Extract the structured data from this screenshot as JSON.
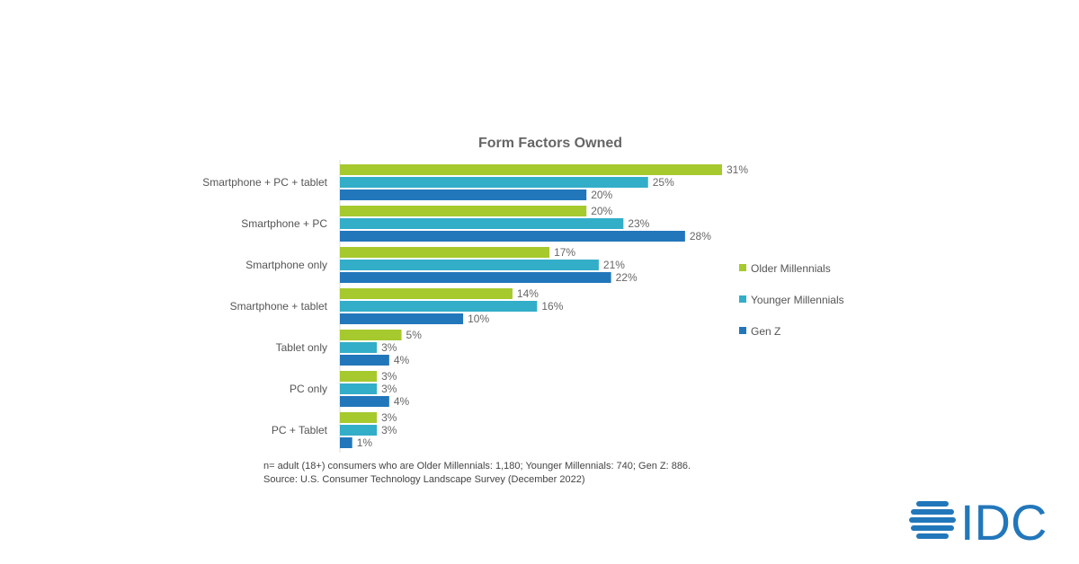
{
  "chart_data": {
    "type": "bar",
    "orientation": "horizontal",
    "title": "Form Factors Owned",
    "categories": [
      "Smartphone + PC + tablet",
      "Smartphone +  PC",
      "Smartphone only",
      "Smartphone + tablet",
      "Tablet only",
      "PC only",
      "PC + Tablet"
    ],
    "series": [
      {
        "name": "Older Millennials",
        "color": "#a6c92e",
        "values": [
          31,
          20,
          17,
          14,
          5,
          3,
          3
        ]
      },
      {
        "name": "Younger Millennials",
        "color": "#33aec8",
        "values": [
          25,
          23,
          21,
          16,
          3,
          3,
          3
        ]
      },
      {
        "name": "Gen Z",
        "color": "#2277bb",
        "values": [
          20,
          28,
          22,
          10,
          4,
          4,
          1
        ]
      }
    ],
    "value_suffix": "%",
    "xlim": [
      0,
      31
    ],
    "grid": false,
    "legend_position": "right"
  },
  "footnote": {
    "line1": "n= adult (18+) consumers who are Older Millennials: 1,180; Younger Millennials: 740; Gen Z: 886.",
    "line2": "Source: U.S. Consumer Technology Landscape Survey (December 2022)"
  },
  "logo": {
    "text": "IDC",
    "color": "#2277bb"
  }
}
